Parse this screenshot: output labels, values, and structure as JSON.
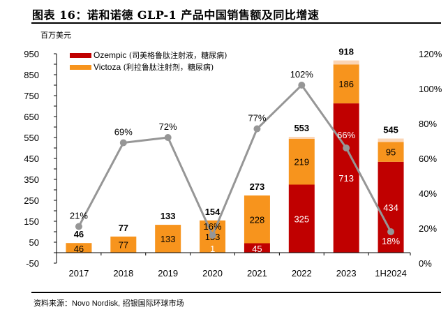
{
  "header": {
    "title": "图表 16：诺和诺德 GLP-1 产品中国销售额及同比增速",
    "unit": "百万美元"
  },
  "footer": {
    "source_label": "资料来源：",
    "source_en": "Novo Nordisk,",
    "source_cn": " 招银国际环球市场"
  },
  "legend": [
    {
      "name_en": "Ozempic",
      "name_cn": " (司美格鲁肽注射液，糖尿病)",
      "color": "#C00000"
    },
    {
      "name_en": "Victoza",
      "name_cn": " (利拉鲁肽注射剂，糖尿病)",
      "color": "#F7941D"
    }
  ],
  "colors": {
    "ozempic": "#C00000",
    "victoza": "#F7941D",
    "other": "#FBD5B5",
    "growth_line": "#969696"
  },
  "chart_data": {
    "type": "bar",
    "subtype": "stacked bar with line on secondary axis",
    "title": "诺和诺德 GLP-1 产品中国销售额及同比增速",
    "ylabel": "百万美元",
    "categories": [
      "2017",
      "2018",
      "2019",
      "2020",
      "2021",
      "2022",
      "2023",
      "1H2024"
    ],
    "series": [
      {
        "name": "Ozempic (司美格鲁肽注射液，糖尿病)",
        "type": "bar",
        "values": [
          0,
          0,
          0,
          1,
          45,
          325,
          713,
          434
        ],
        "labels": [
          "",
          "",
          "",
          "1",
          "45",
          "325",
          "713",
          "434"
        ]
      },
      {
        "name": "Victoza (利拉鲁肽注射剂，糖尿病)",
        "type": "bar",
        "values": [
          46,
          77,
          133,
          153,
          228,
          219,
          186,
          95
        ],
        "labels": [
          "46",
          "77",
          "133",
          "153",
          "228",
          "219",
          "186",
          "95"
        ]
      },
      {
        "name": "Other (unlabeled)",
        "type": "bar",
        "values": [
          0,
          0,
          0,
          0,
          0,
          9,
          19,
          16
        ]
      },
      {
        "name": "YoY growth",
        "type": "line",
        "axis": "right",
        "values": [
          21,
          69,
          72,
          16,
          77,
          102,
          66,
          18
        ],
        "labels": [
          "21%",
          "69%",
          "72%",
          "16%",
          "77%",
          "102%",
          "66%",
          "18%"
        ]
      }
    ],
    "totals": [
      46,
      77,
      133,
      154,
      273,
      553,
      918,
      545
    ],
    "total_labels": [
      "46",
      "77",
      "133",
      "154",
      "273",
      "553",
      "918",
      "545"
    ],
    "left_axis": {
      "ylim": [
        -50,
        950
      ],
      "ticks": [
        -50,
        50,
        150,
        250,
        350,
        450,
        550,
        650,
        750,
        850,
        950
      ],
      "tick_labels": [
        "-50",
        "50",
        "150",
        "250",
        "350",
        "450",
        "550",
        "650",
        "750",
        "850",
        "950"
      ]
    },
    "right_axis": {
      "ylim": [
        0,
        120
      ],
      "ticks": [
        0,
        20,
        40,
        60,
        80,
        100,
        120
      ],
      "tick_labels": [
        "0%",
        "20%",
        "40%",
        "60%",
        "80%",
        "100%",
        "120%"
      ]
    },
    "grid": false,
    "legend_position": "top-left"
  }
}
